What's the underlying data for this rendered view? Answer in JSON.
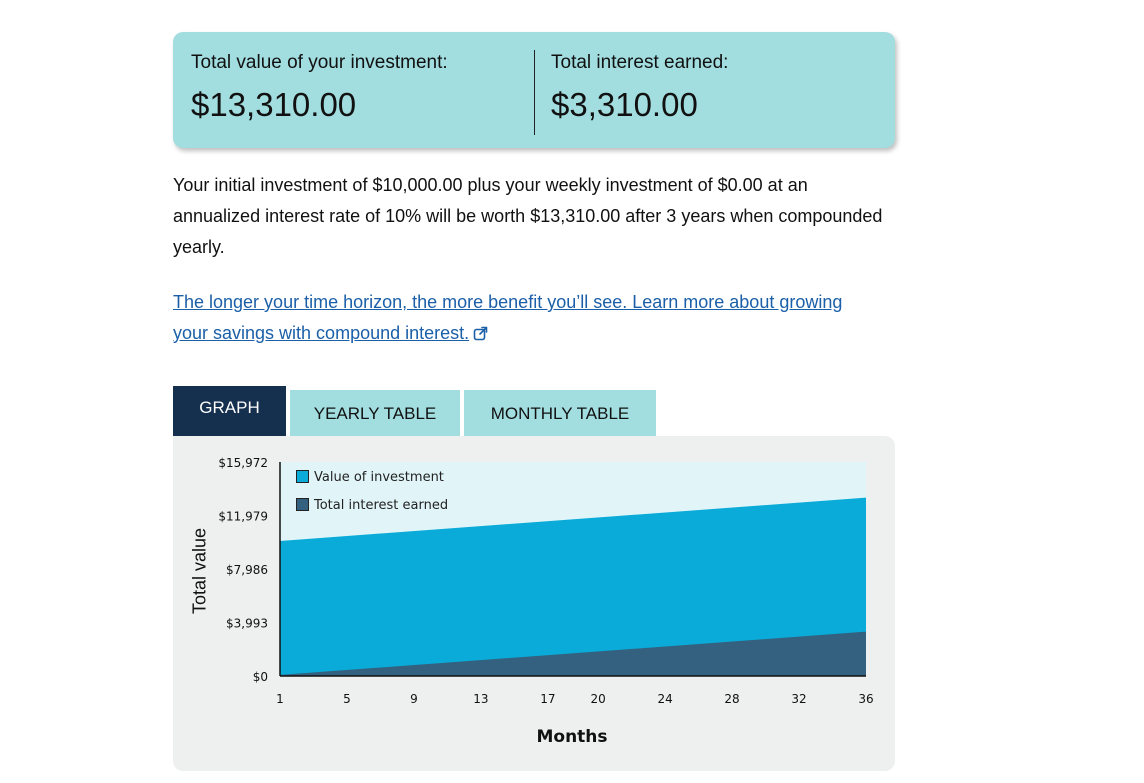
{
  "summary": {
    "total_value_label": "Total value of your investment:",
    "total_value": "$13,310.00",
    "interest_label": "Total interest earned:",
    "interest_value": "$3,310.00"
  },
  "description": "Your initial investment of $10,000.00 plus your weekly investment of $0.00 at an annualized interest rate of 10% will be worth $13,310.00 after 3 years when compounded yearly.",
  "learn_more": {
    "text": "The longer your time horizon, the more benefit you’ll see. Learn more about growing your savings with compound interest.",
    "icon": "external-link-icon"
  },
  "tabs": [
    {
      "label": "GRAPH",
      "active": true
    },
    {
      "label": "YEARLY TABLE",
      "active": false
    },
    {
      "label": "MONTHLY TABLE",
      "active": false
    }
  ],
  "colors": {
    "value_series": "#0aabd8",
    "interest_series": "#33617f",
    "plot_background": "#e1f5f9",
    "accent_dark": "#152f4e",
    "accent_light": "#a2dde0"
  },
  "chart_data": {
    "type": "area",
    "xlabel": "Months",
    "ylabel": "Total value",
    "x_ticks": [
      1,
      5,
      9,
      13,
      17,
      20,
      24,
      28,
      32,
      36
    ],
    "y_ticks": [
      "$0",
      "$3,993",
      "$7,986",
      "$11,979",
      "$15,972"
    ],
    "ylim": [
      0,
      15972
    ],
    "xlim": [
      1,
      36
    ],
    "grid": false,
    "legend_position": "top-left",
    "series": [
      {
        "name": "Value of investment",
        "x": [
          1,
          36
        ],
        "values": [
          10080,
          13310
        ],
        "color": "#0aabd8"
      },
      {
        "name": "Total interest earned",
        "x": [
          1,
          36
        ],
        "values": [
          80,
          3310
        ],
        "color": "#33617f"
      }
    ]
  }
}
